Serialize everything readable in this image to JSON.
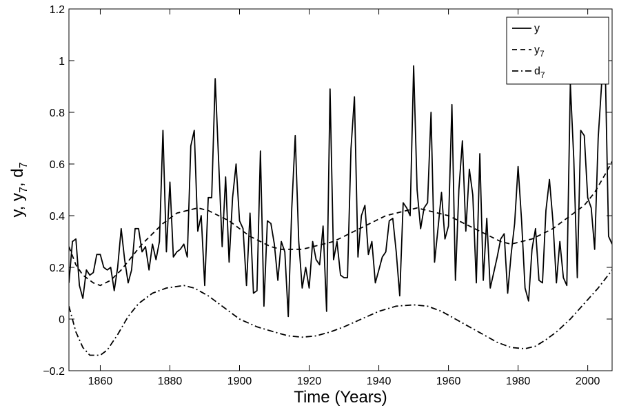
{
  "chart_data": {
    "type": "line",
    "xlabel": "Time (Years)",
    "ylabel": {
      "parts": [
        {
          "text": "y, y",
          "sub": false
        },
        {
          "text": "7",
          "sub": true
        },
        {
          "text": ", d",
          "sub": false
        },
        {
          "text": "7",
          "sub": true
        }
      ]
    },
    "xlim": [
      1851,
      2007
    ],
    "ylim": [
      -0.2,
      1.2
    ],
    "xticks": [
      1860,
      1880,
      1900,
      1920,
      1940,
      1960,
      1980,
      2000
    ],
    "xtick_labels": [
      "1860",
      "1880",
      "1900",
      "1920",
      "1940",
      "1960",
      "1980",
      "2000"
    ],
    "yticks": [
      -0.2,
      0,
      0.2,
      0.4,
      0.6,
      0.8,
      1,
      1.2
    ],
    "ytick_labels": [
      "−0.2",
      "0",
      "0.2",
      "0.4",
      "0.6",
      "0.8",
      "1",
      "1.2"
    ],
    "grid": false,
    "legend_position": "top-right",
    "series": [
      {
        "name": "y",
        "name_sub": "",
        "style": "solid",
        "x": [
          1851,
          1852,
          1853,
          1854,
          1855,
          1856,
          1857,
          1858,
          1859,
          1860,
          1861,
          1862,
          1863,
          1864,
          1865,
          1866,
          1867,
          1868,
          1869,
          1870,
          1871,
          1872,
          1873,
          1874,
          1875,
          1876,
          1877,
          1878,
          1879,
          1880,
          1881,
          1882,
          1883,
          1884,
          1885,
          1886,
          1887,
          1888,
          1889,
          1890,
          1891,
          1892,
          1893,
          1894,
          1895,
          1896,
          1897,
          1898,
          1899,
          1900,
          1901,
          1902,
          1903,
          1904,
          1905,
          1906,
          1907,
          1908,
          1909,
          1910,
          1911,
          1912,
          1913,
          1914,
          1915,
          1916,
          1917,
          1918,
          1919,
          1920,
          1921,
          1922,
          1923,
          1924,
          1925,
          1926,
          1927,
          1928,
          1929,
          1930,
          1931,
          1932,
          1933,
          1934,
          1935,
          1936,
          1937,
          1938,
          1939,
          1940,
          1941,
          1942,
          1943,
          1944,
          1945,
          1946,
          1947,
          1948,
          1949,
          1950,
          1951,
          1952,
          1953,
          1954,
          1955,
          1956,
          1957,
          1958,
          1959,
          1960,
          1961,
          1962,
          1963,
          1964,
          1965,
          1966,
          1967,
          1968,
          1969,
          1970,
          1971,
          1972,
          1973,
          1974,
          1975,
          1976,
          1977,
          1978,
          1979,
          1980,
          1981,
          1982,
          1983,
          1984,
          1985,
          1986,
          1987,
          1988,
          1989,
          1990,
          1991,
          1992,
          1993,
          1994,
          1995,
          1996,
          1997,
          1998,
          1999,
          2000,
          2001,
          2002,
          2003,
          2004,
          2005,
          2006,
          2007
        ],
        "y": [
          0.14,
          0.3,
          0.31,
          0.13,
          0.08,
          0.19,
          0.17,
          0.18,
          0.25,
          0.25,
          0.2,
          0.19,
          0.2,
          0.11,
          0.2,
          0.35,
          0.23,
          0.14,
          0.19,
          0.35,
          0.35,
          0.26,
          0.28,
          0.19,
          0.29,
          0.23,
          0.3,
          0.73,
          0.26,
          0.53,
          0.24,
          0.26,
          0.27,
          0.29,
          0.24,
          0.67,
          0.73,
          0.34,
          0.4,
          0.13,
          0.47,
          0.47,
          0.93,
          0.61,
          0.28,
          0.55,
          0.22,
          0.47,
          0.6,
          0.38,
          0.35,
          0.13,
          0.41,
          0.1,
          0.11,
          0.65,
          0.05,
          0.38,
          0.37,
          0.29,
          0.15,
          0.3,
          0.26,
          0.01,
          0.43,
          0.71,
          0.3,
          0.12,
          0.2,
          0.12,
          0.3,
          0.23,
          0.21,
          0.36,
          0.03,
          0.89,
          0.23,
          0.3,
          0.17,
          0.16,
          0.16,
          0.66,
          0.86,
          0.24,
          0.4,
          0.44,
          0.25,
          0.3,
          0.14,
          0.19,
          0.24,
          0.26,
          0.38,
          0.39,
          0.26,
          0.09,
          0.45,
          0.43,
          0.4,
          0.98,
          0.5,
          0.35,
          0.43,
          0.45,
          0.8,
          0.22,
          0.35,
          0.49,
          0.31,
          0.36,
          0.83,
          0.15,
          0.5,
          0.69,
          0.34,
          0.58,
          0.48,
          0.14,
          0.64,
          0.15,
          0.39,
          0.12,
          0.18,
          0.24,
          0.31,
          0.33,
          0.1,
          0.25,
          0.37,
          0.59,
          0.38,
          0.12,
          0.07,
          0.27,
          0.35,
          0.15,
          0.14,
          0.42,
          0.54,
          0.38,
          0.14,
          0.3,
          0.16,
          0.13,
          0.91,
          0.62,
          0.16,
          0.73,
          0.71,
          0.47,
          0.43,
          0.27,
          0.7,
          0.91,
          1.0,
          0.32,
          0.29
        ]
      },
      {
        "name": "y",
        "name_sub": "7",
        "style": "dashed",
        "x": [
          1851,
          1853,
          1855,
          1858,
          1860,
          1863,
          1866,
          1869,
          1872,
          1875,
          1878,
          1882,
          1885,
          1888,
          1891,
          1894,
          1897,
          1900,
          1903,
          1906,
          1909,
          1912,
          1915,
          1918,
          1921,
          1924,
          1927,
          1930,
          1933,
          1936,
          1939,
          1942,
          1945,
          1948,
          1951,
          1954,
          1957,
          1960,
          1963,
          1966,
          1969,
          1972,
          1975,
          1978,
          1981,
          1984,
          1987,
          1990,
          1993,
          1996,
          1999,
          2002,
          2005,
          2007
        ],
        "y": [
          0.28,
          0.21,
          0.17,
          0.14,
          0.13,
          0.15,
          0.19,
          0.24,
          0.29,
          0.33,
          0.37,
          0.41,
          0.42,
          0.43,
          0.42,
          0.4,
          0.38,
          0.35,
          0.32,
          0.3,
          0.28,
          0.27,
          0.27,
          0.27,
          0.28,
          0.29,
          0.3,
          0.32,
          0.34,
          0.36,
          0.38,
          0.4,
          0.41,
          0.42,
          0.43,
          0.42,
          0.41,
          0.4,
          0.38,
          0.36,
          0.34,
          0.32,
          0.3,
          0.29,
          0.3,
          0.31,
          0.33,
          0.35,
          0.38,
          0.41,
          0.44,
          0.49,
          0.56,
          0.61
        ]
      },
      {
        "name": "d",
        "name_sub": "7",
        "style": "dashdot",
        "x": [
          1851,
          1853,
          1855,
          1857,
          1859,
          1860,
          1862,
          1865,
          1868,
          1871,
          1875,
          1879,
          1884,
          1887,
          1891,
          1895,
          1900,
          1905,
          1910,
          1914,
          1918,
          1922,
          1926,
          1930,
          1935,
          1940,
          1945,
          1950,
          1954,
          1958,
          1962,
          1966,
          1970,
          1974,
          1978,
          1982,
          1985,
          1988,
          1991,
          1995,
          1999,
          2003,
          2007
        ],
        "y": [
          0.05,
          -0.05,
          -0.11,
          -0.14,
          -0.14,
          -0.14,
          -0.12,
          -0.06,
          0.01,
          0.06,
          0.1,
          0.12,
          0.13,
          0.12,
          0.09,
          0.05,
          0.0,
          -0.03,
          -0.05,
          -0.065,
          -0.07,
          -0.065,
          -0.05,
          -0.03,
          0.0,
          0.03,
          0.05,
          0.055,
          0.05,
          0.03,
          0.0,
          -0.03,
          -0.06,
          -0.09,
          -0.11,
          -0.115,
          -0.105,
          -0.08,
          -0.05,
          0.0,
          0.06,
          0.12,
          0.19
        ]
      }
    ]
  }
}
